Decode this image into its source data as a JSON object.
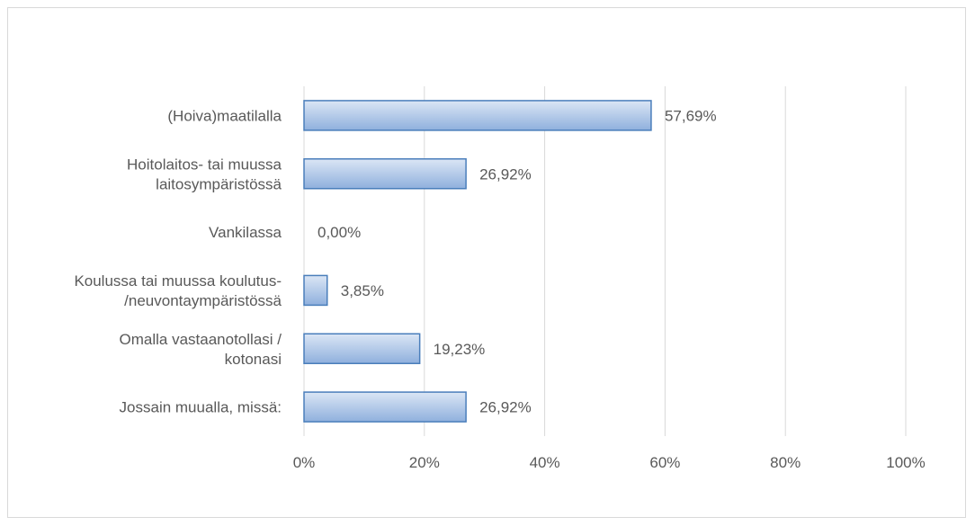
{
  "chart_data": {
    "type": "bar",
    "orientation": "horizontal",
    "categories": [
      [
        "(Hoiva)maatilalla"
      ],
      [
        "Hoitolaitos- tai muussa",
        "laitosympäristössä"
      ],
      [
        "Vankilassa"
      ],
      [
        "Koulussa tai muussa koulutus-",
        "/neuvontaympäristössä"
      ],
      [
        "Omalla vastaanotollasi /",
        "kotonasi"
      ],
      [
        "Jossain muualla, missä:"
      ]
    ],
    "values": [
      57.69,
      26.92,
      0.0,
      3.85,
      19.23,
      26.92
    ],
    "data_labels": [
      "57,69%",
      "26,92%",
      "0,00%",
      "3,85%",
      "19,23%",
      "26,92%"
    ],
    "xlim": [
      0,
      100
    ],
    "x_ticks": [
      "0%",
      "20%",
      "40%",
      "60%",
      "80%",
      "100%"
    ],
    "grid": "vertical",
    "title": "",
    "xlabel": "",
    "ylabel": "",
    "colors": {
      "bar_top": "#dbe6f5",
      "bar_bottom": "#8fb0dd",
      "bar_border": "#4a7ebb",
      "grid": "#d9d9d9",
      "text": "#595959"
    }
  }
}
